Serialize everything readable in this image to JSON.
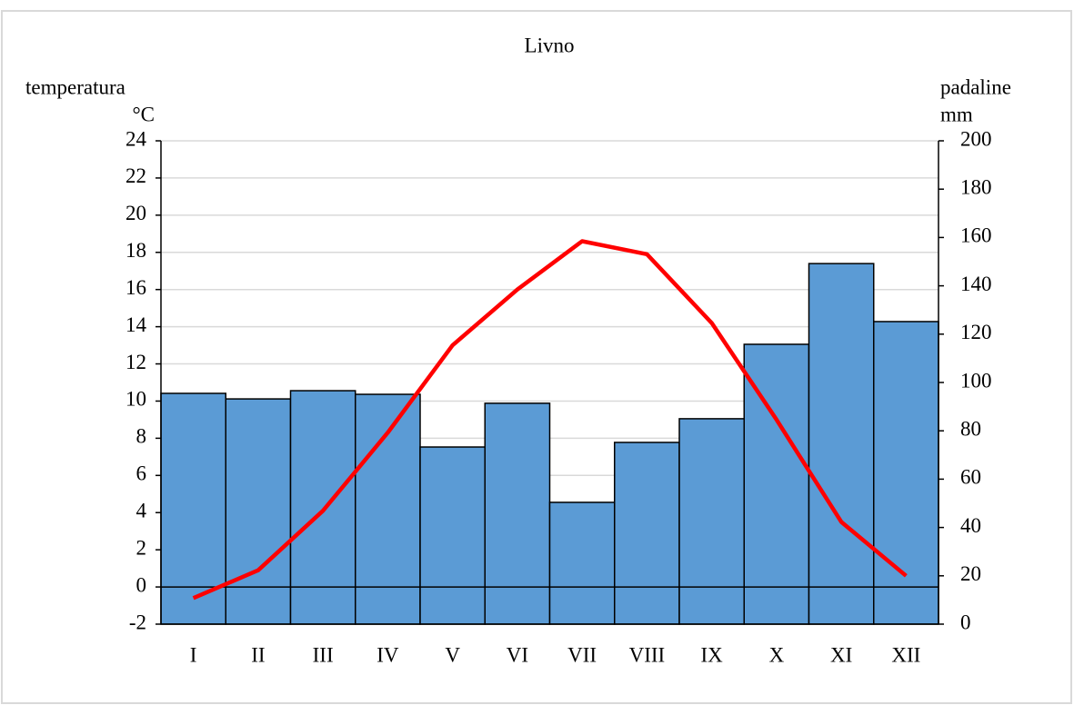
{
  "chart_data": {
    "type": "combo",
    "title": "Livno",
    "ylabel": "temperatura",
    "yunit": "°C",
    "y2label": "padaline",
    "y2unit": "mm",
    "categories": [
      "I",
      "II",
      "III",
      "IV",
      "V",
      "VI",
      "VII",
      "VIII",
      "IX",
      "X",
      "XI",
      "XII"
    ],
    "series": [
      {
        "name": "padaline",
        "type": "bar",
        "axis": "y2",
        "color": "#5b9bd5",
        "values": [
          95.5,
          93.2,
          96.6,
          95.1,
          73.3,
          91.4,
          50.4,
          75.2,
          85.0,
          115.8,
          149.2,
          125.2
        ]
      },
      {
        "name": "temperatura",
        "type": "line",
        "axis": "y",
        "color": "#ff0000",
        "values": [
          -0.6,
          0.9,
          4.1,
          8.3,
          13.0,
          16.0,
          18.6,
          17.9,
          14.2,
          9.0,
          3.5,
          0.6
        ]
      }
    ],
    "ylim": [
      -2,
      24
    ],
    "yticks": [
      -2,
      0,
      2,
      4,
      6,
      8,
      10,
      12,
      14,
      16,
      18,
      20,
      22,
      24
    ],
    "y2lim": [
      0,
      200
    ],
    "y2ticks": [
      0,
      20,
      40,
      60,
      80,
      100,
      120,
      140,
      160,
      180,
      200
    ],
    "grid": true
  }
}
